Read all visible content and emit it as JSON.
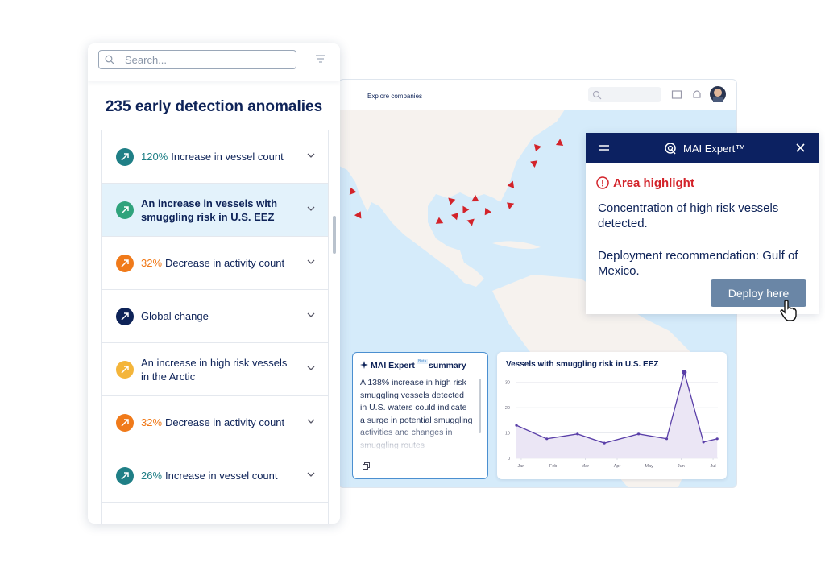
{
  "search": {
    "placeholder": "Search..."
  },
  "list": {
    "title": "235 early detection anomalies",
    "items": [
      {
        "highlight": "120%",
        "text": "Increase in vessel count",
        "icon_color": "#1f7f86"
      },
      {
        "text": "An increase in vessels with smuggling risk in U.S. EEZ",
        "icon_color": "#2fa37c",
        "selected": true
      },
      {
        "highlight": "32%",
        "text": "Decrease in activity count",
        "icon_color": "#f07a1a"
      },
      {
        "text": "Global change",
        "icon_color": "#0e2358"
      },
      {
        "text": "An increase in high risk vessels in the Arctic",
        "icon_color": "#f4b53a"
      },
      {
        "highlight": "32%",
        "text": "Decrease in activity count",
        "icon_color": "#f07a1a"
      },
      {
        "highlight": "26%",
        "text": "Increase in vessel count",
        "icon_color": "#1f7f86"
      }
    ]
  },
  "map": {
    "nav": "Explore companies"
  },
  "expert": {
    "title": "MAI Expert™",
    "heading": "Area highlight",
    "paragraphs": [
      "Concentration of high risk vessels detected.",
      "Deployment recommendation: Gulf of Mexico."
    ],
    "button": "Deploy here"
  },
  "summary": {
    "title": "MAI Expert",
    "badge": "Beta",
    "title_end": "summary",
    "text": "A 138% increase in high risk smuggling vessels detected in U.S. waters could indicate a surge in potential smuggling activities and changes in smuggling routes"
  },
  "chart_data": {
    "type": "line",
    "title": "Vessels with smuggling risk in U.S. EEZ",
    "color": "#5a3fa8",
    "x": [
      -0.15,
      0.8,
      1.76,
      2.6,
      3.67,
      4.55,
      5.1,
      5.7,
      6.13
    ],
    "values": [
      13,
      7.7,
      9.6,
      6,
      9.6,
      7.7,
      34,
      6.4,
      7.7
    ],
    "xlim": [
      -0.15,
      6.15
    ],
    "xticks": [
      {
        "value": 0,
        "label": "Jan"
      },
      {
        "value": 1,
        "label": "Feb"
      },
      {
        "value": 2,
        "label": "Mar"
      },
      {
        "value": 3,
        "label": "Apr"
      },
      {
        "value": 4,
        "label": "May"
      },
      {
        "value": 5,
        "label": "Jun"
      },
      {
        "value": 6,
        "label": "Jul"
      }
    ],
    "ylim": [
      0,
      35
    ],
    "yticks": [
      0,
      10,
      20,
      30
    ],
    "grid": true
  }
}
